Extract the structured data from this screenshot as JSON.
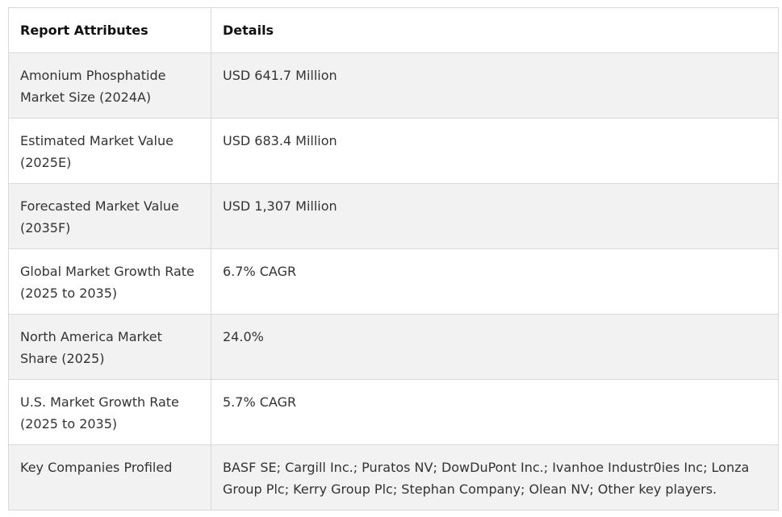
{
  "table": {
    "headers": [
      "Report Attributes",
      "Details"
    ],
    "rows": [
      {
        "attribute": "Amonium Phosphatide Market Size (2024A)",
        "details": "USD 641.7 Million"
      },
      {
        "attribute": "Estimated Market Value (2025E)",
        "details": "USD 683.4 Million"
      },
      {
        "attribute": "Forecasted Market Value (2035F)",
        "details": "USD 1,307 Million"
      },
      {
        "attribute": "Global Market Growth Rate (2025 to 2035)",
        "details": "6.7% CAGR"
      },
      {
        "attribute": "North America Market Share (2025)",
        "details": "24.0%"
      },
      {
        "attribute": "U.S. Market Growth Rate (2025 to 2035)",
        "details": "5.7% CAGR"
      },
      {
        "attribute": "Key Companies Profiled",
        "details": "BASF SE; Cargill Inc.; Puratos NV; DowDuPont Inc.; Ivanhoe Industr0ies Inc; Lonza Group Plc; Kerry Group Plc; Stephan Company; Olean NV; Other key players."
      }
    ]
  }
}
